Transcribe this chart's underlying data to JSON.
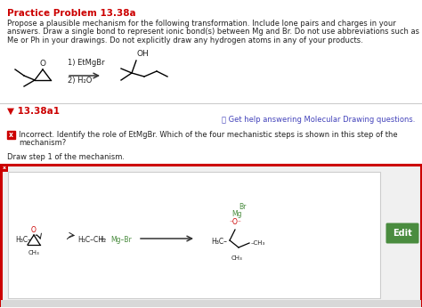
{
  "title": "Practice Problem 13.38a",
  "title_color": "#cc0000",
  "bg_color": "#ffffff",
  "body_text_lines": [
    "Propose a plausible mechanism for the following transformation. Include lone pairs and charges in your",
    "answers. Draw a single bond to represent ionic bond(s) between Mg and Br. Do not use abbreviations such as",
    "Me or Ph in your drawings. Do not explicitly draw any hydrogen atoms in any of your products."
  ],
  "section_label": "▼ 13.38a1",
  "section_label_color": "#cc0000",
  "help_text": "❓ Get help answering Molecular Drawing questions.",
  "incorrect_line1": "Incorrect. Identify the role of EtMgBr. Which of the four mechanistic steps is shown in this step of the",
  "incorrect_line2": "mechanism?",
  "draw_text": "Draw step 1 of the mechanism.",
  "edit_button_color": "#4a8c3f",
  "edit_button_text": "Edit",
  "red_border_color": "#cc0000",
  "inner_border_color": "#cccccc",
  "divider_color": "#cccccc",
  "text_color": "#222222",
  "rxn_label1": "1) EtMgBr",
  "rxn_label2": "2) H₂O",
  "green_color": "#4a8c3f",
  "red_color": "#cc0000"
}
